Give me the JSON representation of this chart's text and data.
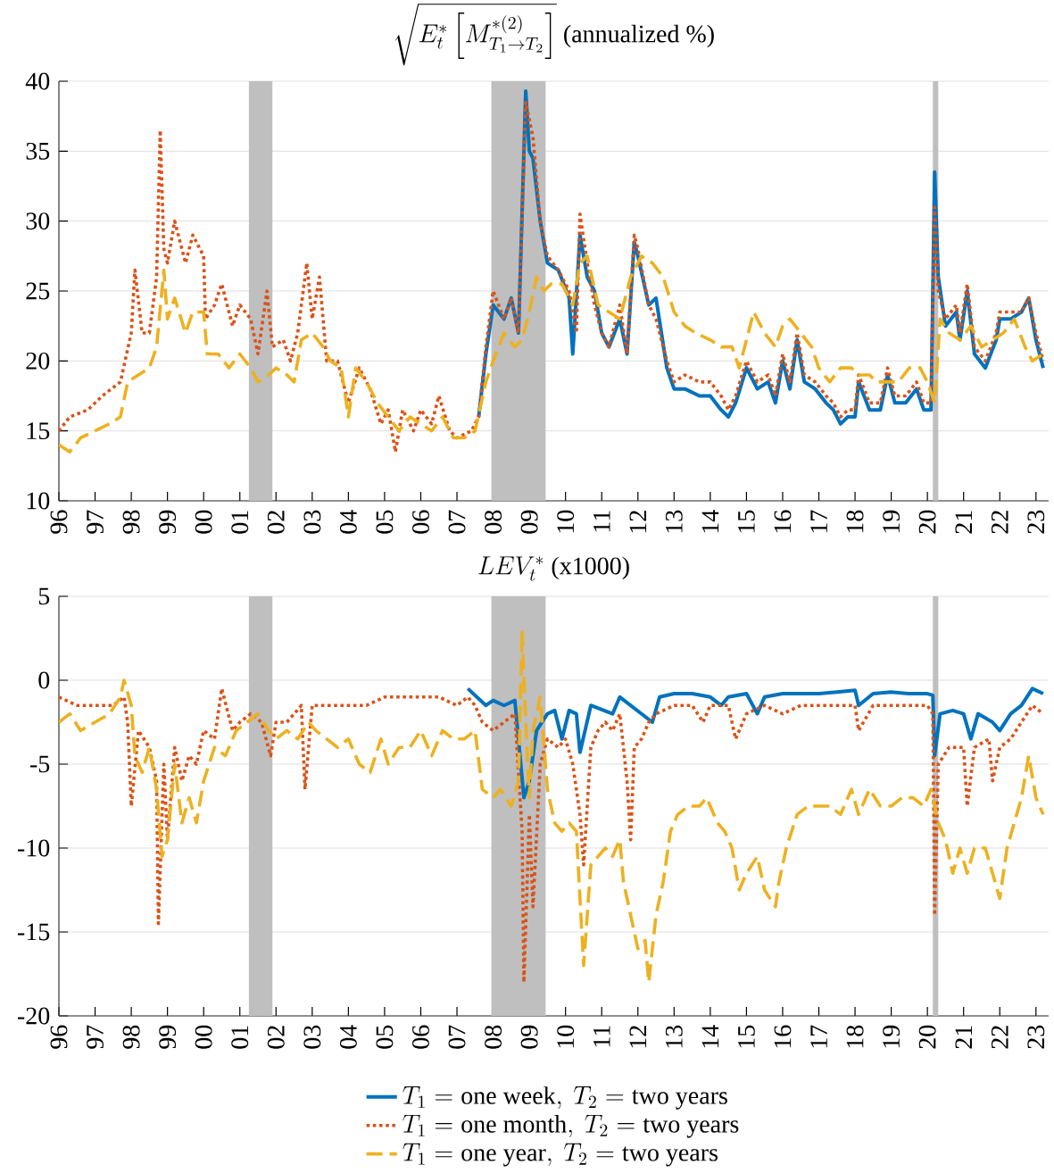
{
  "chart_data": [
    {
      "type": "line",
      "title": "\\sqrt{E_t^*\\left[M^{*(2)}_{T_1\\to T_2}\\right]}\\ \\text{(annualized \\%)}",
      "xlim": [
        1996,
        2023.35
      ],
      "ylim": [
        10,
        40
      ],
      "yticks": [
        10,
        15,
        20,
        25,
        30,
        35,
        40
      ],
      "xticks": [
        {
          "value": 1996,
          "label": "96"
        },
        {
          "value": 1997,
          "label": "97"
        },
        {
          "value": 1998,
          "label": "98"
        },
        {
          "value": 1999,
          "label": "99"
        },
        {
          "value": 2000,
          "label": "00"
        },
        {
          "value": 2001,
          "label": "01"
        },
        {
          "value": 2002,
          "label": "02"
        },
        {
          "value": 2003,
          "label": "03"
        },
        {
          "value": 2004,
          "label": "04"
        },
        {
          "value": 2005,
          "label": "05"
        },
        {
          "value": 2006,
          "label": "06"
        },
        {
          "value": 2007,
          "label": "07"
        },
        {
          "value": 2008,
          "label": "08"
        },
        {
          "value": 2009,
          "label": "09"
        },
        {
          "value": 2010,
          "label": "10"
        },
        {
          "value": 2011,
          "label": "11"
        },
        {
          "value": 2012,
          "label": "12"
        },
        {
          "value": 2013,
          "label": "13"
        },
        {
          "value": 2014,
          "label": "14"
        },
        {
          "value": 2015,
          "label": "15"
        },
        {
          "value": 2016,
          "label": "16"
        },
        {
          "value": 2017,
          "label": "17"
        },
        {
          "value": 2018,
          "label": "18"
        },
        {
          "value": 2019,
          "label": "19"
        },
        {
          "value": 2020,
          "label": "20"
        },
        {
          "value": 2021,
          "label": "21"
        },
        {
          "value": 2022,
          "label": "22"
        },
        {
          "value": 2023,
          "label": "23"
        }
      ],
      "grid": "y",
      "bands": [
        {
          "axis": "x",
          "from": 2001.25,
          "to": 2001.9,
          "color": "#bfbfbf"
        },
        {
          "axis": "x",
          "from": 2007.95,
          "to": 2009.45,
          "color": "#bfbfbf"
        },
        {
          "axis": "x",
          "from": 2020.15,
          "to": 2020.3,
          "color": "#bfbfbf"
        }
      ],
      "series": [
        {
          "color": "#0072bd",
          "line_style": "solid",
          "x": [
            2007.6,
            2007.8,
            2008.0,
            2008.3,
            2008.5,
            2008.7,
            2008.9,
            2009.0,
            2009.1,
            2009.3,
            2009.5,
            2009.8,
            2010.1,
            2010.2,
            2010.4,
            2010.6,
            2010.8,
            2011.0,
            2011.2,
            2011.5,
            2011.7,
            2011.9,
            2012.0,
            2012.3,
            2012.5,
            2012.8,
            2013.0,
            2013.3,
            2013.7,
            2014.0,
            2014.3,
            2014.5,
            2014.7,
            2015.0,
            2015.3,
            2015.6,
            2015.8,
            2016.0,
            2016.2,
            2016.4,
            2016.6,
            2016.9,
            2017.2,
            2017.4,
            2017.6,
            2017.8,
            2018.0,
            2018.1,
            2018.4,
            2018.7,
            2018.9,
            2019.1,
            2019.4,
            2019.7,
            2019.9,
            2020.1,
            2020.2,
            2020.3,
            2020.5,
            2020.8,
            2020.9,
            2021.1,
            2021.3,
            2021.6,
            2021.9,
            2022.0,
            2022.3,
            2022.6,
            2022.8,
            2023.0,
            2023.2
          ],
          "values": [
            16,
            20.5,
            24,
            23,
            24.5,
            22,
            39.3,
            35,
            34.5,
            30,
            27,
            26.5,
            24.5,
            20.5,
            29,
            26,
            25,
            22,
            21,
            23,
            20.5,
            28.5,
            27.5,
            24,
            24.5,
            19.5,
            18,
            18,
            17.5,
            17.5,
            16.5,
            16,
            17,
            19.5,
            18,
            18.5,
            17,
            20,
            18,
            21.5,
            18.5,
            18,
            17,
            16.5,
            15.5,
            16,
            16,
            18.5,
            16.5,
            16.5,
            19,
            17,
            17,
            18,
            16.5,
            16.5,
            33.5,
            26,
            22.5,
            23.5,
            21.5,
            25,
            20.5,
            19.5,
            21.5,
            23,
            23,
            23.5,
            24.5,
            21.5,
            19.5
          ]
        },
        {
          "color": "#d95319",
          "line_style": "dotted",
          "x": [
            1996.0,
            1996.3,
            1996.8,
            1997.2,
            1997.7,
            1998.0,
            1998.1,
            1998.3,
            1998.5,
            1998.7,
            1998.8,
            1998.9,
            1999.0,
            1999.2,
            1999.5,
            1999.7,
            2000.0,
            2000.05,
            2000.3,
            2000.5,
            2000.8,
            2001.0,
            2001.3,
            2001.5,
            2001.75,
            2001.9,
            2002.2,
            2002.4,
            2002.6,
            2002.85,
            2003.0,
            2003.2,
            2003.4,
            2003.7,
            2004.0,
            2004.3,
            2004.6,
            2004.9,
            2005.1,
            2005.3,
            2005.5,
            2005.8,
            2006.0,
            2006.3,
            2006.5,
            2006.8,
            2007.0,
            2007.4,
            2007.6,
            2007.8,
            2008.0,
            2008.3,
            2008.5,
            2008.7,
            2008.9,
            2009.1,
            2009.3,
            2009.5,
            2009.8,
            2010.1,
            2010.3,
            2010.4,
            2010.6,
            2010.8,
            2011.0,
            2011.2,
            2011.5,
            2011.7,
            2011.9,
            2012.0,
            2012.3,
            2012.5,
            2012.8,
            2013.0,
            2013.3,
            2013.7,
            2014.0,
            2014.3,
            2014.5,
            2014.7,
            2015.0,
            2015.3,
            2015.6,
            2015.8,
            2016.0,
            2016.2,
            2016.4,
            2016.6,
            2016.9,
            2017.2,
            2017.4,
            2017.6,
            2017.8,
            2018.0,
            2018.1,
            2018.4,
            2018.7,
            2018.9,
            2019.1,
            2019.4,
            2019.7,
            2019.9,
            2020.1,
            2020.2,
            2020.3,
            2020.5,
            2020.8,
            2020.9,
            2021.1,
            2021.3,
            2021.6,
            2021.9,
            2022.0,
            2022.3,
            2022.6,
            2022.8,
            2023.0,
            2023.2
          ],
          "values": [
            15,
            16,
            16.5,
            17.5,
            18.5,
            22,
            26.5,
            22,
            22,
            26,
            36.5,
            28,
            27,
            30,
            27,
            29,
            27.5,
            23,
            24,
            25.5,
            22.5,
            24,
            23,
            20.5,
            25,
            21,
            21.5,
            20,
            22,
            27,
            23,
            26,
            20,
            20,
            17,
            19.5,
            18,
            15.5,
            16.5,
            13.5,
            16.5,
            15,
            16.5,
            15.5,
            17.5,
            15,
            14.5,
            15,
            16,
            21,
            25,
            23,
            24.5,
            22,
            38.5,
            36,
            30,
            27.5,
            26.5,
            25,
            22,
            30.5,
            27,
            24,
            22,
            21,
            24,
            20.5,
            29,
            28,
            24,
            23,
            20,
            18.5,
            19,
            18.5,
            18.5,
            17.5,
            16.5,
            17.5,
            20,
            18.5,
            19,
            17.5,
            20.5,
            18.5,
            22,
            19,
            18.5,
            17.5,
            17,
            16,
            16.5,
            16.5,
            19,
            17,
            17,
            19.5,
            17.5,
            17.5,
            18.5,
            17,
            17,
            31,
            25,
            23,
            24,
            22,
            25.5,
            21,
            20,
            22,
            23.5,
            23.5,
            23.5,
            24.5,
            22,
            20
          ]
        },
        {
          "color": "#edb120",
          "line_style": "dashed",
          "x": [
            1996.0,
            1996.3,
            1996.6,
            1997.0,
            1997.4,
            1997.7,
            1997.9,
            1998.2,
            1998.5,
            1998.7,
            1998.9,
            1999.0,
            1999.2,
            1999.5,
            1999.7,
            2000.0,
            2000.1,
            2000.4,
            2000.7,
            2001.0,
            2001.3,
            2001.5,
            2001.8,
            2002.0,
            2002.3,
            2002.5,
            2002.7,
            2003.0,
            2003.3,
            2003.5,
            2003.8,
            2004.0,
            2004.2,
            2004.5,
            2004.8,
            2005.1,
            2005.4,
            2005.7,
            2006.0,
            2006.3,
            2006.6,
            2006.9,
            2007.2,
            2007.5,
            2007.8,
            2008.0,
            2008.3,
            2008.6,
            2008.8,
            2009.0,
            2009.2,
            2009.4,
            2009.6,
            2009.9,
            2010.2,
            2010.4,
            2010.6,
            2010.9,
            2011.2,
            2011.5,
            2011.8,
            2012.1,
            2012.4,
            2012.7,
            2013.0,
            2013.3,
            2013.6,
            2014.0,
            2014.3,
            2014.6,
            2014.8,
            2015.0,
            2015.2,
            2015.5,
            2015.8,
            2016.0,
            2016.2,
            2016.5,
            2016.8,
            2017.0,
            2017.3,
            2017.6,
            2017.9,
            2018.1,
            2018.4,
            2018.6,
            2018.9,
            2019.2,
            2019.5,
            2019.8,
            2020.0,
            2020.2,
            2020.35,
            2020.6,
            2020.9,
            2021.2,
            2021.5,
            2021.8,
            2022.1,
            2022.4,
            2022.7,
            2022.9,
            2023.2
          ],
          "values": [
            14,
            13.5,
            14.5,
            15,
            15.5,
            16,
            18.5,
            19,
            19.5,
            21,
            26.5,
            23,
            24.5,
            22,
            23.5,
            23.5,
            20.5,
            20.5,
            19.5,
            20.5,
            19.5,
            18.5,
            19,
            19.5,
            19,
            18.5,
            21.5,
            22,
            21,
            20,
            19.5,
            16,
            19.5,
            18.5,
            17,
            16,
            15,
            16,
            15.5,
            15,
            16,
            14.5,
            14.5,
            15,
            18.5,
            20,
            22,
            21,
            21.5,
            23.5,
            26,
            25,
            25.5,
            25.5,
            24,
            27,
            27.5,
            24,
            23.5,
            23,
            26,
            27.5,
            27,
            26,
            23.5,
            22.5,
            22,
            21.5,
            21,
            21,
            19.5,
            21.5,
            23.5,
            22,
            21,
            22.5,
            23,
            22,
            21,
            19.5,
            18.5,
            19.5,
            19.5,
            19,
            19,
            18.5,
            18.5,
            18.5,
            19.5,
            19.5,
            18.5,
            17,
            23,
            22,
            21.5,
            22.5,
            21,
            21.5,
            22,
            23,
            21,
            20,
            20.5
          ]
        }
      ]
    },
    {
      "type": "line",
      "title": "LEV_t^*\\ \\text{(x1000)}",
      "xlim": [
        1996,
        2023.35
      ],
      "ylim": [
        -20,
        5
      ],
      "yticks": [
        -20,
        -15,
        -10,
        -5,
        0,
        5
      ],
      "xticks": [
        {
          "value": 1996,
          "label": "96"
        },
        {
          "value": 1997,
          "label": "97"
        },
        {
          "value": 1998,
          "label": "98"
        },
        {
          "value": 1999,
          "label": "99"
        },
        {
          "value": 2000,
          "label": "00"
        },
        {
          "value": 2001,
          "label": "01"
        },
        {
          "value": 2002,
          "label": "02"
        },
        {
          "value": 2003,
          "label": "03"
        },
        {
          "value": 2004,
          "label": "04"
        },
        {
          "value": 2005,
          "label": "05"
        },
        {
          "value": 2006,
          "label": "06"
        },
        {
          "value": 2007,
          "label": "07"
        },
        {
          "value": 2008,
          "label": "08"
        },
        {
          "value": 2009,
          "label": "09"
        },
        {
          "value": 2010,
          "label": "10"
        },
        {
          "value": 2011,
          "label": "11"
        },
        {
          "value": 2012,
          "label": "12"
        },
        {
          "value": 2013,
          "label": "13"
        },
        {
          "value": 2014,
          "label": "14"
        },
        {
          "value": 2015,
          "label": "15"
        },
        {
          "value": 2016,
          "label": "16"
        },
        {
          "value": 2017,
          "label": "17"
        },
        {
          "value": 2018,
          "label": "18"
        },
        {
          "value": 2019,
          "label": "19"
        },
        {
          "value": 2020,
          "label": "20"
        },
        {
          "value": 2021,
          "label": "21"
        },
        {
          "value": 2022,
          "label": "22"
        },
        {
          "value": 2023,
          "label": "23"
        }
      ],
      "grid": "y",
      "legend": "bottom",
      "bands": [
        {
          "axis": "x",
          "from": 2001.25,
          "to": 2001.9,
          "color": "#bfbfbf"
        },
        {
          "axis": "x",
          "from": 2007.95,
          "to": 2009.45,
          "color": "#bfbfbf"
        },
        {
          "axis": "x",
          "from": 2020.15,
          "to": 2020.3,
          "color": "#bfbfbf"
        }
      ],
      "series": [
        {
          "name": "T_1 = \\text{one week},\\ T_2 = \\text{two years}",
          "color": "#0072bd",
          "line_style": "solid",
          "x": [
            2007.3,
            2007.8,
            2008.0,
            2008.3,
            2008.6,
            2008.85,
            2009.0,
            2009.2,
            2009.5,
            2009.7,
            2009.9,
            2010.1,
            2010.3,
            2010.4,
            2010.7,
            2011.3,
            2011.5,
            2012.4,
            2012.6,
            2013.0,
            2013.5,
            2014.0,
            2014.3,
            2014.5,
            2015.0,
            2015.3,
            2015.5,
            2016.0,
            2016.5,
            2017.0,
            2017.5,
            2018.0,
            2018.1,
            2018.5,
            2019.0,
            2019.5,
            2020.0,
            2020.15,
            2020.2,
            2020.35,
            2020.7,
            2021.0,
            2021.2,
            2021.4,
            2021.8,
            2022.0,
            2022.3,
            2022.6,
            2022.9,
            2023.2
          ],
          "values": [
            -0.5,
            -1.5,
            -1.2,
            -1.5,
            -1.2,
            -7,
            -6,
            -3,
            -2,
            -1.8,
            -3.5,
            -1.8,
            -2,
            -4.3,
            -1.5,
            -2,
            -1,
            -2.5,
            -1,
            -0.8,
            -0.8,
            -1,
            -1.5,
            -1,
            -0.8,
            -2,
            -1,
            -0.8,
            -0.8,
            -0.8,
            -0.7,
            -0.6,
            -1.5,
            -0.8,
            -0.7,
            -0.8,
            -0.8,
            -0.9,
            -4.5,
            -2,
            -1.8,
            -2,
            -3.5,
            -2,
            -2.5,
            -3,
            -2,
            -1.5,
            -0.5,
            -0.8
          ]
        },
        {
          "name": "T_1 = \\text{one month},\\ T_2 = \\text{two years}",
          "color": "#d95319",
          "line_style": "dotted",
          "x": [
            1996.0,
            1996.5,
            1997.0,
            1997.5,
            1997.8,
            1997.9,
            1998.0,
            1998.2,
            1998.5,
            1998.7,
            1998.75,
            1998.9,
            1999.0,
            1999.2,
            1999.4,
            1999.6,
            1999.8,
            2000.0,
            2000.3,
            2000.5,
            2000.8,
            2001.0,
            2001.3,
            2001.6,
            2001.85,
            2002.0,
            2002.3,
            2002.7,
            2002.8,
            2003.0,
            2003.5,
            2004.0,
            2004.5,
            2005.0,
            2005.5,
            2006.0,
            2006.5,
            2007.0,
            2007.3,
            2007.5,
            2007.7,
            2008.0,
            2008.3,
            2008.6,
            2008.8,
            2008.85,
            2009.0,
            2009.1,
            2009.3,
            2009.5,
            2009.8,
            2010.0,
            2010.2,
            2010.4,
            2010.5,
            2010.7,
            2010.9,
            2011.1,
            2011.3,
            2011.5,
            2011.7,
            2011.8,
            2011.9,
            2012.1,
            2012.3,
            2012.5,
            2013.0,
            2013.5,
            2013.8,
            2014.0,
            2014.5,
            2014.7,
            2015.0,
            2015.5,
            2016.0,
            2016.5,
            2017.0,
            2017.5,
            2018.0,
            2018.1,
            2018.5,
            2019.0,
            2019.5,
            2020.0,
            2020.15,
            2020.2,
            2020.3,
            2020.6,
            2021.0,
            2021.1,
            2021.3,
            2021.7,
            2021.8,
            2022.0,
            2022.3,
            2022.6,
            2022.9,
            2023.2
          ],
          "values": [
            -1,
            -1.5,
            -1.5,
            -1.5,
            -1,
            -2.5,
            -7.5,
            -3,
            -4,
            -6,
            -14.5,
            -5,
            -9.5,
            -4,
            -6,
            -4.5,
            -5,
            -3,
            -3.5,
            -0.5,
            -3,
            -2.5,
            -2,
            -2.5,
            -4.5,
            -2.5,
            -2.5,
            -1.5,
            -6.5,
            -1.5,
            -1.5,
            -1.5,
            -1.5,
            -1,
            -1,
            -1,
            -1,
            -1.5,
            -1,
            -1.5,
            -2.5,
            -3,
            -2.5,
            -2,
            -9,
            -18,
            -8,
            -13.5,
            -5,
            -3.5,
            -4,
            -3.5,
            -5,
            -8,
            -11,
            -4,
            -3,
            -2.5,
            -3,
            -2,
            -6,
            -9.5,
            -4,
            -3.5,
            -2.5,
            -2,
            -1.5,
            -1.5,
            -2.5,
            -1.5,
            -1.5,
            -3.5,
            -2,
            -1.5,
            -2,
            -1.5,
            -1.5,
            -1.5,
            -1.5,
            -3,
            -1.5,
            -1.5,
            -1.5,
            -1.5,
            -2,
            -14,
            -5,
            -4,
            -4,
            -7.5,
            -4,
            -3.5,
            -6,
            -4,
            -3.5,
            -2.5,
            -1.5,
            -2
          ]
        },
        {
          "name": "T_1 = \\text{one year},\\ T_2 = \\text{two years}",
          "color": "#edb120",
          "line_style": "dashed",
          "x": [
            1996.0,
            1996.3,
            1996.6,
            1997.0,
            1997.4,
            1997.7,
            1997.8,
            1998.0,
            1998.1,
            1998.3,
            1998.5,
            1998.7,
            1998.85,
            1999.0,
            1999.2,
            1999.4,
            1999.6,
            1999.8,
            2000.0,
            2000.3,
            2000.6,
            2000.9,
            2001.2,
            2001.5,
            2001.8,
            2002.0,
            2002.3,
            2002.6,
            2002.9,
            2003.1,
            2003.4,
            2003.7,
            2004.0,
            2004.3,
            2004.6,
            2004.9,
            2005.1,
            2005.4,
            2005.7,
            2006.0,
            2006.3,
            2006.6,
            2006.9,
            2007.2,
            2007.5,
            2007.7,
            2008.0,
            2008.2,
            2008.5,
            2008.7,
            2008.8,
            2008.85,
            2009.0,
            2009.1,
            2009.3,
            2009.5,
            2009.7,
            2009.9,
            2010.1,
            2010.3,
            2010.5,
            2010.7,
            2010.9,
            2011.1,
            2011.3,
            2011.5,
            2011.6,
            2011.8,
            2012.0,
            2012.2,
            2012.3,
            2012.5,
            2012.7,
            2012.9,
            2013.1,
            2013.4,
            2013.7,
            2013.9,
            2014.2,
            2014.4,
            2014.6,
            2014.8,
            2015.0,
            2015.3,
            2015.5,
            2015.8,
            2015.9,
            2016.1,
            2016.4,
            2016.7,
            2017.0,
            2017.3,
            2017.6,
            2017.9,
            2018.1,
            2018.4,
            2018.7,
            2019.0,
            2019.3,
            2019.6,
            2019.9,
            2020.1,
            2020.2,
            2020.3,
            2020.5,
            2020.7,
            2020.9,
            2021.1,
            2021.3,
            2021.6,
            2021.8,
            2022.0,
            2022.2,
            2022.4,
            2022.6,
            2022.8,
            2023.0,
            2023.2
          ],
          "values": [
            -2.5,
            -2,
            -3,
            -2.5,
            -2,
            -1,
            0,
            -1.5,
            -4.5,
            -5.5,
            -4,
            -6.5,
            -10.5,
            -9.5,
            -5,
            -8.5,
            -7,
            -8.5,
            -6,
            -4,
            -4.5,
            -3,
            -2.5,
            -2,
            -3,
            -3.5,
            -3,
            -3.5,
            -2.5,
            -3,
            -3.5,
            -4,
            -3.5,
            -5,
            -5.5,
            -3.5,
            -5,
            -4,
            -4,
            -3,
            -4.5,
            -3,
            -3.5,
            -3.5,
            -3,
            -6.5,
            -7,
            -6.5,
            -7.5,
            -6,
            3,
            0,
            -7,
            -3,
            -1,
            -6.5,
            -8.5,
            -9,
            -8.5,
            -9,
            -17,
            -11,
            -10.5,
            -10,
            -10.5,
            -9.5,
            -12,
            -14,
            -16,
            -15.5,
            -18,
            -14,
            -12,
            -9,
            -8,
            -7.5,
            -7.5,
            -7,
            -8.5,
            -9,
            -10,
            -12.5,
            -11.5,
            -10.5,
            -12.5,
            -13.5,
            -12,
            -10,
            -8,
            -7.5,
            -7.5,
            -7.5,
            -8,
            -6.5,
            -8,
            -6.5,
            -7.5,
            -7.5,
            -7,
            -7,
            -7.5,
            -6.5,
            -7.5,
            -8.5,
            -9.5,
            -11.5,
            -10,
            -11.5,
            -10,
            -10,
            -11.5,
            -13,
            -10,
            -8.5,
            -7,
            -4.5,
            -7,
            -8
          ]
        }
      ]
    }
  ]
}
